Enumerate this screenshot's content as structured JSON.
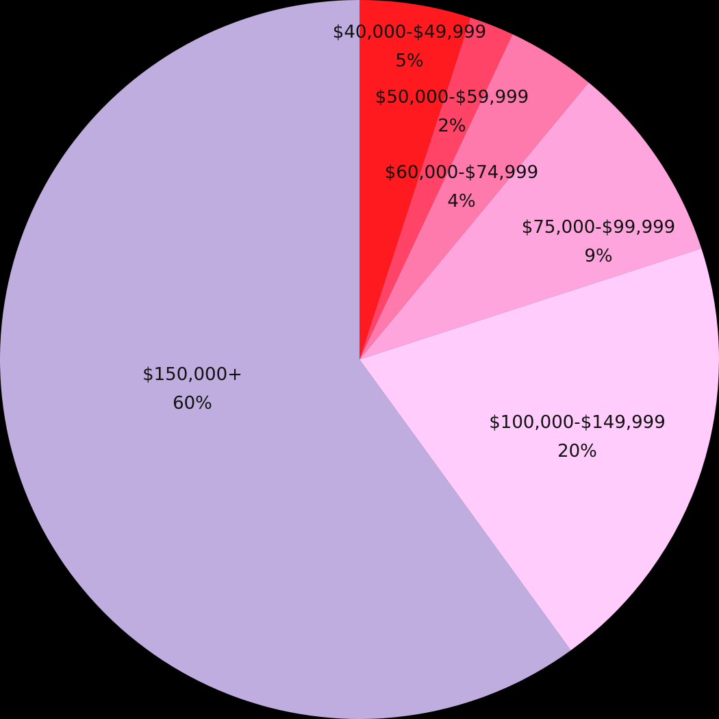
{
  "chart_data": {
    "type": "pie",
    "start_angle_deg": 0,
    "direction": "clockwise",
    "slices": [
      {
        "label": "$40,000-$49,999",
        "value": 5,
        "value_label": "5%",
        "color": "#ff1a1f"
      },
      {
        "label": "$50,000-$59,999",
        "value": 2,
        "value_label": "2%",
        "color": "#ff4468"
      },
      {
        "label": "$60,000-$74,999",
        "value": 4,
        "value_label": "4%",
        "color": "#ff7aac"
      },
      {
        "label": "$75,000-$99,999",
        "value": 9,
        "value_label": "9%",
        "color": "#ffa5dd"
      },
      {
        "label": "$100,000-$149,999",
        "value": 20,
        "value_label": "20%",
        "color": "#ffccfc"
      },
      {
        "label": "$150,000+",
        "value": 60,
        "value_label": "60%",
        "color": "#c0ade0"
      }
    ]
  }
}
